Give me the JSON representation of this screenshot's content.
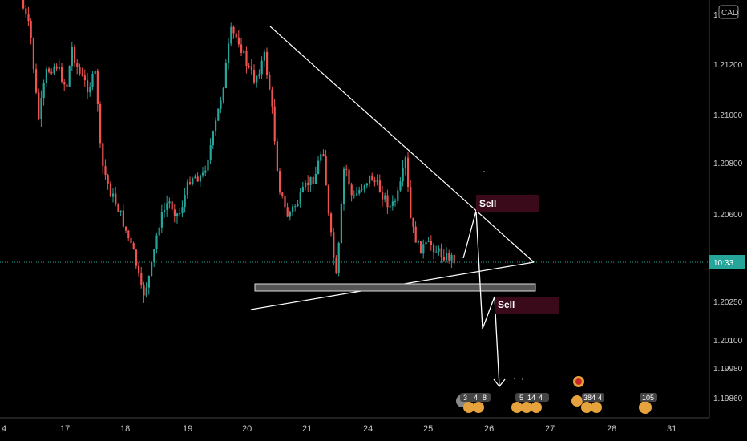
{
  "currency_label": "CAD",
  "current_price_label": "10:33",
  "colors": {
    "up": "#26a69a",
    "down": "#ef5350",
    "background": "#000000",
    "axis": "#c9c9c9",
    "current_line": "#26a69a",
    "sell_box": "#3a0a1a"
  },
  "chart_data": {
    "type": "candlestick",
    "title": "",
    "xlabel": "",
    "ylabel": "",
    "x_ticks": [
      "4",
      "17",
      "18",
      "19",
      "20",
      "21",
      "24",
      "25",
      "26",
      "27",
      "28",
      "31"
    ],
    "y_ticks": [
      "1",
      "1.21200",
      "1.21000",
      "1.20800",
      "1.20600",
      "1.20250",
      "1.20100",
      "1.19980",
      "1.19860"
    ],
    "grid": false,
    "current_price_line": true,
    "series": [],
    "annotations": [
      {
        "type": "trendline",
        "label": "descending resistance"
      },
      {
        "type": "trendline",
        "label": "ascending support"
      },
      {
        "type": "zone",
        "label": "support zone"
      },
      {
        "type": "arrow_path",
        "label": "projected move"
      },
      {
        "type": "label",
        "text": "Sell"
      },
      {
        "type": "label",
        "text": "Sell"
      }
    ],
    "event_badges": [
      {
        "text": "3"
      },
      {
        "text": "4"
      },
      {
        "text": "8"
      },
      {
        "text": "5"
      },
      {
        "text": "14"
      },
      {
        "text": "4"
      },
      {
        "text": "384"
      },
      {
        "text": "4"
      },
      {
        "text": "105"
      }
    ]
  }
}
